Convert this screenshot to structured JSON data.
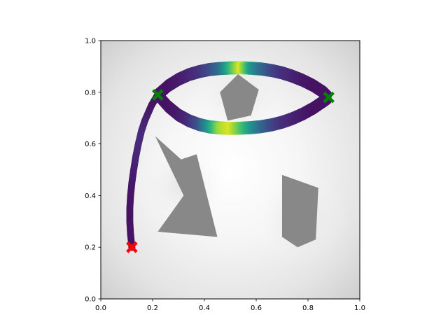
{
  "chart_data": {
    "type": "scatter",
    "title": "",
    "xlabel": "",
    "ylabel": "",
    "xlim": [
      0.0,
      1.0
    ],
    "ylim": [
      0.0,
      1.0
    ],
    "xticks": [
      "0.0",
      "0.2",
      "0.4",
      "0.6",
      "0.8",
      "1.0"
    ],
    "yticks": [
      "0.0",
      "0.2",
      "0.4",
      "0.6",
      "0.8",
      "1.0"
    ],
    "grid": false,
    "legend": "none",
    "colormap": "viridis",
    "background": "grayscale potential field, light near center, darker near edges",
    "obstacles": [
      {
        "name": "pentagon",
        "color": "#888888",
        "vertices": [
          [
            0.46,
            0.8
          ],
          [
            0.53,
            0.87
          ],
          [
            0.61,
            0.81
          ],
          [
            0.58,
            0.71
          ],
          [
            0.49,
            0.69
          ]
        ]
      },
      {
        "name": "chevron",
        "color": "#888888",
        "vertices": [
          [
            0.21,
            0.63
          ],
          [
            0.31,
            0.54
          ],
          [
            0.37,
            0.56
          ],
          [
            0.45,
            0.24
          ],
          [
            0.22,
            0.26
          ],
          [
            0.32,
            0.4
          ]
        ]
      },
      {
        "name": "quad",
        "color": "#888888",
        "vertices": [
          [
            0.7,
            0.48
          ],
          [
            0.84,
            0.43
          ],
          [
            0.83,
            0.23
          ],
          [
            0.76,
            0.2
          ],
          [
            0.7,
            0.24
          ]
        ]
      }
    ],
    "markers": {
      "start": {
        "label": "",
        "color": "#ff0000",
        "x": 0.12,
        "y": 0.2
      },
      "waypoints": [
        {
          "color": "#008000",
          "x": 0.22,
          "y": 0.79
        },
        {
          "color": "#008000",
          "x": 0.88,
          "y": 0.78
        }
      ]
    },
    "series": [
      {
        "x": [
          0.12,
          0.115,
          0.112,
          0.112,
          0.115,
          0.12,
          0.127,
          0.135,
          0.145,
          0.157,
          0.17,
          0.183,
          0.196,
          0.208,
          0.22
        ],
        "y": [
          0.2,
          0.25,
          0.3,
          0.35,
          0.4,
          0.45,
          0.5,
          0.55,
          0.6,
          0.65,
          0.69,
          0.72,
          0.75,
          0.77,
          0.79
        ],
        "c": [
          0.05,
          0.05,
          0.05,
          0.05,
          0.05,
          0.06,
          0.08,
          0.1,
          0.12,
          0.12,
          0.1,
          0.08,
          0.06,
          0.05,
          0.05
        ]
      },
      {
        "x": [
          0.22,
          0.26,
          0.3,
          0.34,
          0.38,
          0.42,
          0.46,
          0.5,
          0.54,
          0.58,
          0.62,
          0.66,
          0.7,
          0.74,
          0.78,
          0.82,
          0.86,
          0.88
        ],
        "y": [
          0.79,
          0.825,
          0.85,
          0.868,
          0.88,
          0.888,
          0.892,
          0.894,
          0.895,
          0.893,
          0.89,
          0.884,
          0.875,
          0.862,
          0.846,
          0.826,
          0.8,
          0.78
        ],
        "c": [
          0.05,
          0.05,
          0.07,
          0.1,
          0.14,
          0.22,
          0.35,
          0.65,
          0.95,
          0.55,
          0.35,
          0.22,
          0.14,
          0.1,
          0.07,
          0.05,
          0.05,
          0.05
        ]
      },
      {
        "x": [
          0.22,
          0.26,
          0.3,
          0.34,
          0.38,
          0.42,
          0.46,
          0.5,
          0.54,
          0.58,
          0.62,
          0.66,
          0.7,
          0.74,
          0.78,
          0.82,
          0.86,
          0.88
        ],
        "y": [
          0.79,
          0.745,
          0.712,
          0.69,
          0.675,
          0.666,
          0.662,
          0.66,
          0.661,
          0.663,
          0.667,
          0.674,
          0.684,
          0.698,
          0.716,
          0.738,
          0.765,
          0.78
        ],
        "c": [
          0.05,
          0.05,
          0.07,
          0.12,
          0.25,
          0.55,
          0.85,
          0.95,
          0.75,
          0.55,
          0.35,
          0.22,
          0.14,
          0.1,
          0.07,
          0.05,
          0.05,
          0.05
        ]
      }
    ]
  }
}
